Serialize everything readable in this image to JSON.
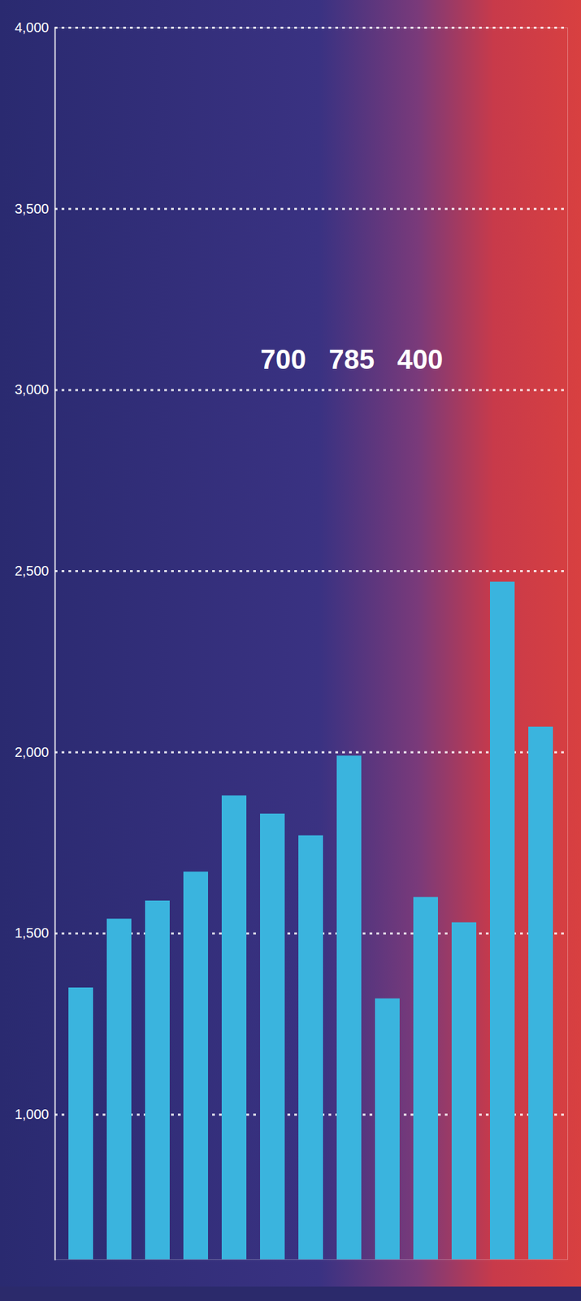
{
  "chart_data": {
    "type": "bar",
    "categories": [
      null,
      null,
      null,
      null,
      null,
      null,
      null,
      null,
      null,
      null,
      null,
      null,
      null
    ],
    "values": [
      1350,
      1540,
      1590,
      1670,
      1880,
      1830,
      1770,
      1990,
      1320,
      1600,
      1530,
      2470,
      2070
    ],
    "color": "#3ab4de",
    "ylim": [
      600,
      4000
    ],
    "yticks": [
      {
        "value": 1000,
        "label": "1,000"
      },
      {
        "value": 1500,
        "label": "1,500"
      },
      {
        "value": 2000,
        "label": "2,000"
      },
      {
        "value": 2500,
        "label": "2,500"
      },
      {
        "value": 3000,
        "label": "3,000"
      },
      {
        "value": 3500,
        "label": "3,500"
      },
      {
        "value": 4000,
        "label": "4,000"
      }
    ],
    "grid": true,
    "tick_labels": "y",
    "annotations": [
      "700",
      "785",
      "400"
    ]
  }
}
